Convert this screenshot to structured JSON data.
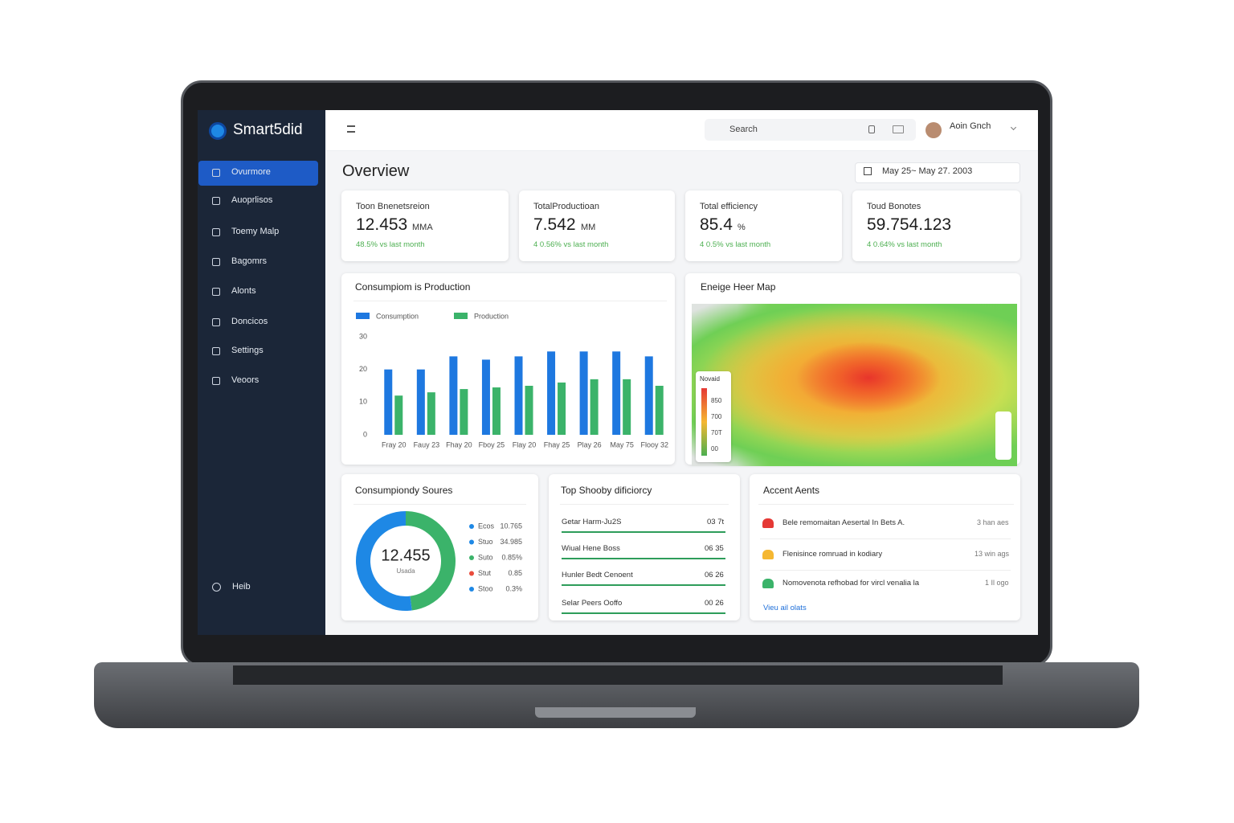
{
  "app": {
    "brand": "Smart5did",
    "nav": [
      "Ovurmore",
      "Auoprlisos",
      "Toemy Malp",
      "Bagomrs",
      "Alonts",
      "Doncicos",
      "Settings",
      "Veoors"
    ],
    "help": "Heib",
    "search": "Search",
    "user": "Aoin Gnch"
  },
  "overview": {
    "title": "Overview",
    "date_range": "May 25~ May 27. 2003"
  },
  "kpis": [
    {
      "label": "Toon Bnenetsreion",
      "value": "12.453",
      "unit": "MMA",
      "change": "48.5% vs last month"
    },
    {
      "label": "TotalProductioan",
      "value": "7.542",
      "unit": "MM",
      "change": "4 0.56% vs last month"
    },
    {
      "label": "Total efficiency",
      "value": "85.4",
      "unit": "%",
      "change": "4 0.5% vs last month"
    },
    {
      "label": "Toud Bonotes",
      "value": "59.754.123",
      "unit": "",
      "change": "4 0.64% vs last month"
    }
  ],
  "chart_data": [
    {
      "type": "bar",
      "title": "Consumpiom is Production",
      "categories": [
        "Fray 20",
        "Fauy 23",
        "Fhay 20",
        "Fboy 25",
        "Flay 20",
        "Fhay 25",
        "Play 26",
        "May 75",
        "Flooy 32"
      ],
      "series": [
        {
          "name": "Consumption",
          "color": "#1e78e0",
          "values": [
            20,
            20,
            24,
            23,
            24,
            25.5,
            25.5,
            25.5,
            24
          ]
        },
        {
          "name": "Production",
          "color": "#3bb36a",
          "values": [
            12,
            13,
            14,
            14.5,
            15,
            16,
            17,
            17,
            15
          ]
        }
      ],
      "ylim": [
        0,
        30
      ],
      "yticks": [
        0,
        10,
        20,
        30
      ],
      "grid": false
    },
    {
      "type": "pie",
      "title": "Consumpiondy Soures",
      "center_value": "12.455",
      "center_label": "Usada",
      "values": [
        48,
        52
      ],
      "colors": [
        "#3bb36a",
        "#1e88e5"
      ],
      "legend": [
        {
          "name": "Ecos",
          "value": "10.765",
          "color": "#1e88e5"
        },
        {
          "name": "Stuo",
          "value": "34.985",
          "color": "#1e88e5"
        },
        {
          "name": "Suto",
          "value": "0.85%",
          "color": "#3bb36a"
        },
        {
          "name": "Stut",
          "value": "0.85",
          "color": "#e94b3c"
        },
        {
          "name": "Stoo",
          "value": "0.3%",
          "color": "#1e88e5"
        }
      ]
    }
  ],
  "heatmap": {
    "title": "Eneige Heer Map",
    "legend_title": "Novaid",
    "legend": [
      "850",
      "700",
      "70T",
      "00"
    ]
  },
  "efficiency": {
    "title": "Top Shooby dificiorcy",
    "rows": [
      {
        "name": "Getar Harm-Ju2S",
        "value": "03 7t"
      },
      {
        "name": "Wiual Hene Boss",
        "value": "06 35"
      },
      {
        "name": "Hunler Bedt Cenoent",
        "value": "06 26"
      },
      {
        "name": "Selar Peers Ooffo",
        "value": "00 26"
      }
    ]
  },
  "alerts": {
    "title": "Accent Aents",
    "items": [
      {
        "text": "Bele remomaitan Aesertal In Bets A.",
        "time": "3 han aes",
        "color": "#e53935"
      },
      {
        "text": "Flenisince romruad in kodiary",
        "time": "13 win ags",
        "color": "#f5b731"
      },
      {
        "text": "Nomovenota refhobad for vircl venalia la",
        "time": "1 Il ogo",
        "color": "#3bb36a"
      }
    ],
    "link": "Vieu ail olats"
  }
}
